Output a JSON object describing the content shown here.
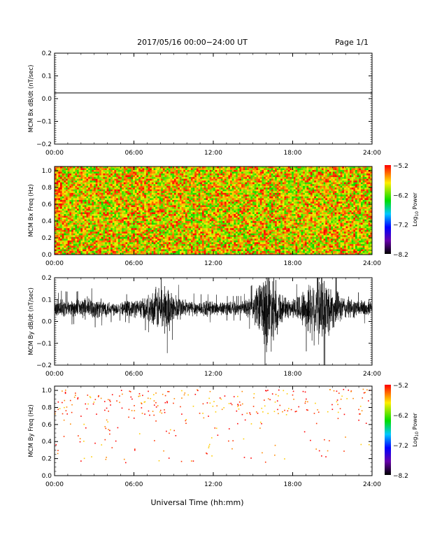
{
  "header": {
    "title": "2017/05/16  00:00−24:00 UT",
    "page": "Page 1/1"
  },
  "footer": {
    "xlabel": "Universal Time (hh:mm)"
  },
  "chart_data": [
    {
      "type": "line",
      "ylabel": "MCM Bx dB/dt (nT/sec)",
      "xlim": [
        0,
        24
      ],
      "ylim": [
        -0.2,
        0.2
      ],
      "x_ticks": [
        "00:00",
        "06:00",
        "12:00",
        "18:00",
        "24:00"
      ],
      "y_ticks": [
        "−0.2",
        "−0.1",
        "0.0",
        "0.1",
        "0.2"
      ],
      "y_tick_values": [
        -0.2,
        -0.1,
        0.0,
        0.1,
        0.2
      ],
      "series": [
        {
          "x": [
            0,
            24
          ],
          "values": [
            0.025,
            0.025
          ]
        }
      ]
    },
    {
      "type": "heatmap",
      "ylabel": "MCM Bx Freq (Hz)",
      "xlim": [
        0,
        24
      ],
      "ylim": [
        0,
        1.05
      ],
      "x_ticks": [
        "00:00",
        "06:00",
        "12:00",
        "18:00",
        "24:00"
      ],
      "y_ticks": [
        "0.0",
        "0.2",
        "0.4",
        "0.6",
        "0.8",
        "1.0"
      ],
      "y_tick_values": [
        0,
        0.2,
        0.4,
        0.6,
        0.8,
        1.0
      ],
      "colorbar": {
        "label": "Log10 Power",
        "label_text": "Log",
        "label_sub": "10",
        "label_rest": " Power",
        "ticks": [
          "−5.2",
          "−6.2",
          "−7.2",
          "−8.2"
        ],
        "tick_values": [
          -5.2,
          -6.2,
          -7.2,
          -8.2
        ],
        "range": [
          -8.2,
          -5.2
        ]
      },
      "typical_power_range": [
        -6.4,
        -5.2
      ],
      "colors": {
        "dominant": [
          "#ff0000",
          "#ff6a00",
          "#ffaa00",
          "#ffd000",
          "#dddd00",
          "#aade00",
          "#55dd00"
        ]
      }
    },
    {
      "type": "line",
      "ylabel": "MCM By dB/dt (nT/sec)",
      "xlim": [
        0,
        24
      ],
      "ylim": [
        -0.2,
        0.2
      ],
      "x_ticks": [
        "00:00",
        "06:00",
        "12:00",
        "18:00",
        "24:00"
      ],
      "y_ticks": [
        "−0.2",
        "−0.1",
        "0.0",
        "0.1",
        "0.2"
      ],
      "y_tick_values": [
        -0.2,
        -0.1,
        0.0,
        0.1,
        0.2
      ],
      "baseline": 0.06,
      "envelope": [
        {
          "x": 0,
          "amp": 0.035
        },
        {
          "x": 0.5,
          "amp": 0.05
        },
        {
          "x": 1.5,
          "amp": 0.045
        },
        {
          "x": 2.5,
          "amp": 0.06
        },
        {
          "x": 3.5,
          "amp": 0.05
        },
        {
          "x": 4.2,
          "amp": 0.04
        },
        {
          "x": 5,
          "amp": 0.035
        },
        {
          "x": 6.3,
          "amp": 0.05
        },
        {
          "x": 7.2,
          "amp": 0.07
        },
        {
          "x": 7.8,
          "amp": 0.12
        },
        {
          "x": 8.4,
          "amp": 0.14
        },
        {
          "x": 9.0,
          "amp": 0.08
        },
        {
          "x": 10.0,
          "amp": 0.045
        },
        {
          "x": 11.0,
          "amp": 0.04
        },
        {
          "x": 12.0,
          "amp": 0.04
        },
        {
          "x": 13.0,
          "amp": 0.035
        },
        {
          "x": 14.2,
          "amp": 0.035
        },
        {
          "x": 15.0,
          "amp": 0.07
        },
        {
          "x": 15.6,
          "amp": 0.16
        },
        {
          "x": 16.2,
          "amp": 0.24
        },
        {
          "x": 16.8,
          "amp": 0.14
        },
        {
          "x": 17.3,
          "amp": 0.06
        },
        {
          "x": 18.0,
          "amp": 0.05
        },
        {
          "x": 18.8,
          "amp": 0.1
        },
        {
          "x": 19.4,
          "amp": 0.16
        },
        {
          "x": 19.9,
          "amp": 0.2
        },
        {
          "x": 20.5,
          "amp": 0.18
        },
        {
          "x": 21.2,
          "amp": 0.09
        },
        {
          "x": 22.0,
          "amp": 0.06
        },
        {
          "x": 23.0,
          "amp": 0.045
        },
        {
          "x": 24.0,
          "amp": 0.04
        }
      ]
    },
    {
      "type": "heatmap",
      "ylabel": "MCM By Freq (Hz)",
      "xlim": [
        0,
        24
      ],
      "ylim": [
        0,
        1.05
      ],
      "x_ticks": [
        "00:00",
        "06:00",
        "12:00",
        "18:00",
        "24:00"
      ],
      "y_ticks": [
        "0.0",
        "0.2",
        "0.4",
        "0.6",
        "0.8",
        "1.0"
      ],
      "y_tick_values": [
        0,
        0.2,
        0.4,
        0.6,
        0.8,
        1.0
      ],
      "colorbar": {
        "label": "Log10 Power",
        "label_text": "Log",
        "label_sub": "10",
        "label_rest": " Power",
        "ticks": [
          "−5.2",
          "−6.2",
          "−7.2",
          "−8.2"
        ],
        "tick_values": [
          -5.2,
          -6.2,
          -7.2,
          -8.2
        ],
        "range": [
          -8.2,
          -5.2
        ]
      },
      "note": "sparse points, mostly above 0.6 Hz",
      "colors": {
        "dominant": [
          "#ff0000",
          "#ff3300",
          "#ff8800",
          "#ffcc00"
        ]
      }
    }
  ]
}
